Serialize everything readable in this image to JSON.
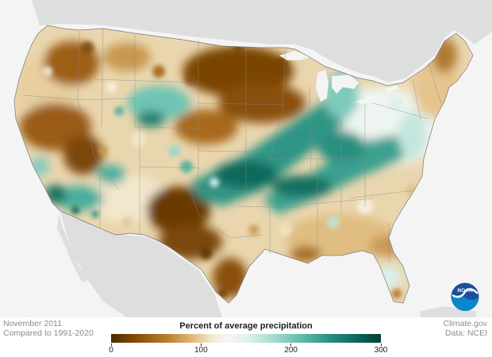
{
  "footer": {
    "date_label": "November 2011",
    "compare_label": "Compared to 1991-2020",
    "source_label": "Climate.gov",
    "data_label": "Data: NCEI"
  },
  "legend": {
    "title": "Percent of average precipitation",
    "ticks": [
      "0",
      "100",
      "200",
      "300"
    ],
    "min": 0,
    "max": 300
  },
  "logo": {
    "text": "NOAA"
  },
  "colors": {
    "dry_dark": "#5a3200",
    "dry": "#b07020",
    "neutral": "#f7f4ec",
    "wet": "#5fbcac",
    "wet_dark": "#064a40",
    "land_outside": "#dcdcdc",
    "water": "#f4f4f4"
  }
}
